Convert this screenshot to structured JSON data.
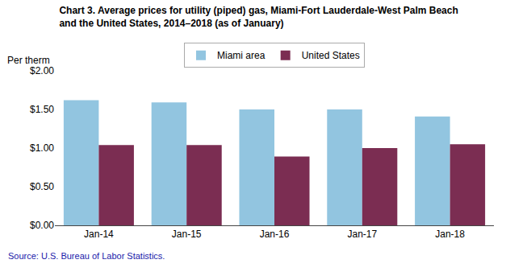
{
  "chart_data": {
    "type": "bar",
    "title": "Chart 3. Average prices for utility (piped) gas, Miami-Fort Lauderdale-West Palm Beach\nand the United States, 2014–2018 (as of January)",
    "ylabel": "Per therm",
    "source": "Source: U.S. Bureau of Labor Statistics.",
    "categories": [
      "Jan-14",
      "Jan-15",
      "Jan-16",
      "Jan-17",
      "Jan-18"
    ],
    "series": [
      {
        "name": "Miami area",
        "color": "#92C5E0",
        "values": [
          1.62,
          1.59,
          1.5,
          1.5,
          1.41
        ]
      },
      {
        "name": "United States",
        "color": "#7B2D52",
        "values": [
          1.04,
          1.04,
          0.89,
          1.0,
          1.05
        ]
      }
    ],
    "ylim": [
      0,
      2.0
    ],
    "yticks": [
      {
        "value": 0.0,
        "label": "$0.00"
      },
      {
        "value": 0.5,
        "label": "$0.50"
      },
      {
        "value": 1.0,
        "label": "$1.00"
      },
      {
        "value": 1.5,
        "label": "$1.50"
      },
      {
        "value": 2.0,
        "label": "$2.00"
      }
    ],
    "grid": false,
    "legend": "top"
  }
}
